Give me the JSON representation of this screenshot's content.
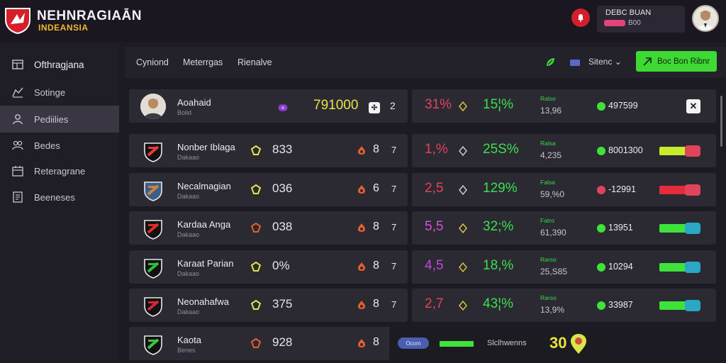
{
  "brand": {
    "title": "NEHNRAGIAĀN",
    "subtitle": "INDEANSIA"
  },
  "user": {
    "name": "DEBC BUAN",
    "sub": "B00"
  },
  "sidebar": {
    "items": [
      {
        "label": "Ofthragjana",
        "icon": "grid-icon"
      },
      {
        "label": "Sotinge",
        "icon": "chart-icon"
      },
      {
        "label": "Pediilies",
        "icon": "users-icon"
      },
      {
        "label": "Bedes",
        "icon": "people-icon"
      },
      {
        "label": "Reteragrane",
        "icon": "calendar-icon"
      },
      {
        "label": "Beeneses",
        "icon": "document-icon"
      }
    ]
  },
  "header": {
    "tabs": [
      "Cyniond",
      "Meterrgas",
      "Rienalve"
    ],
    "filter_label": "Sitenc",
    "cta_label": "Boc Bon Ribnr"
  },
  "rows": [
    {
      "name": "Aoahaid",
      "sub": "Bolid",
      "stat": "791000",
      "num": "2",
      "pct": "31%",
      "pct_color": "#e0445a",
      "green_pct": "15¦%",
      "mini_label": "Ralso",
      "mini_val": "13,96",
      "price": "497599",
      "dot": "#3ee23b",
      "kind": "photo"
    },
    {
      "name": "Nonber Iblaga",
      "sub": "Dakaao",
      "stat": "833",
      "num": "8",
      "num2": "7",
      "pct": "1,%",
      "pct_color": "#e0445a",
      "green_pct": "25S%",
      "mini_label": "Ralsa",
      "mini_val": "4,235",
      "price": "8001300",
      "dot": "#3ee23b",
      "bar": "#c6ec2c",
      "cap": "#e0445a"
    },
    {
      "name": "Necalmagian",
      "sub": "Dakaao",
      "stat": "036",
      "num": "6",
      "num2": "7",
      "pct": "2,5",
      "pct_color": "#e0445a",
      "green_pct": "129%",
      "mini_label": "Falsa",
      "mini_val": "59,%0",
      "price": "-12991",
      "dot": "#e0445a",
      "bar": "#e62c3a",
      "cap": "#e0445a"
    },
    {
      "name": "Kardaa Anga",
      "sub": "Dakaao",
      "stat": "038",
      "num": "8",
      "num2": "7",
      "pct": "5,5",
      "pct_color": "#d450d8",
      "green_pct": "32;%",
      "mini_label": "Fatro",
      "mini_val": "61,390",
      "price": "13951",
      "dot": "#3ee23b",
      "bar": "#3ee23b",
      "cap": "#2ba7c6"
    },
    {
      "name": "Karaat Parian",
      "sub": "Dakaao",
      "stat": "0%",
      "num": "8",
      "num2": "7",
      "pct": "4,5",
      "pct_color": "#c448d8",
      "green_pct": "18,%",
      "mini_label": "Rarso",
      "mini_val": "25,S85",
      "price": "10294",
      "dot": "#3ee23b",
      "bar": "#3ee23b",
      "cap": "#2ba7c6"
    },
    {
      "name": "Neonahafwa",
      "sub": "Dakaao",
      "stat": "375",
      "num": "8",
      "num2": "7",
      "pct": "2,7",
      "pct_color": "#e0445a",
      "green_pct": "43¦%",
      "mini_label": "Rarso",
      "mini_val": "13,9%",
      "price": "33987",
      "dot": "#3ee23b",
      "bar": "#3ee23b",
      "cap": "#2ba7c6"
    },
    {
      "name": "Kaota",
      "sub": "Benes",
      "stat": "928",
      "num": "8",
      "kind": "last"
    }
  ],
  "footer": {
    "pill": "Ocom",
    "label": "Slclhwenns",
    "value": "30"
  },
  "colors": {
    "accent_green": "#3ed934",
    "accent_yellow": "#e5e547",
    "brand_red": "#d21f2d"
  }
}
